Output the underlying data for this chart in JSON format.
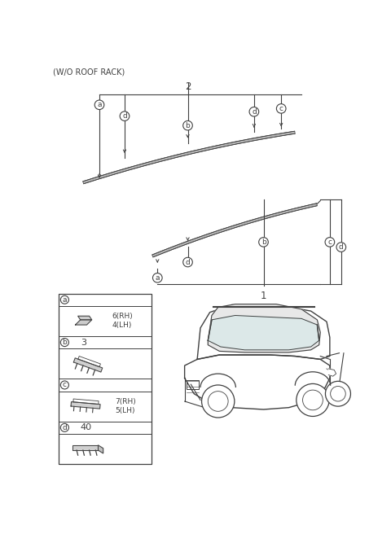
{
  "title": "(W/O ROOF RACK)",
  "bg_color": "#ffffff",
  "line_color": "#404040",
  "fig_width": 4.8,
  "fig_height": 6.56,
  "dpi": 100,
  "ref_top": "2",
  "ref_bot": "1",
  "parts": [
    {
      "label": "a",
      "number": "6(RH)\n4(LH)"
    },
    {
      "label": "b",
      "number": "3"
    },
    {
      "label": "c",
      "number": "7(RH)\n5(LH)"
    },
    {
      "label": "d",
      "number": "40"
    }
  ]
}
